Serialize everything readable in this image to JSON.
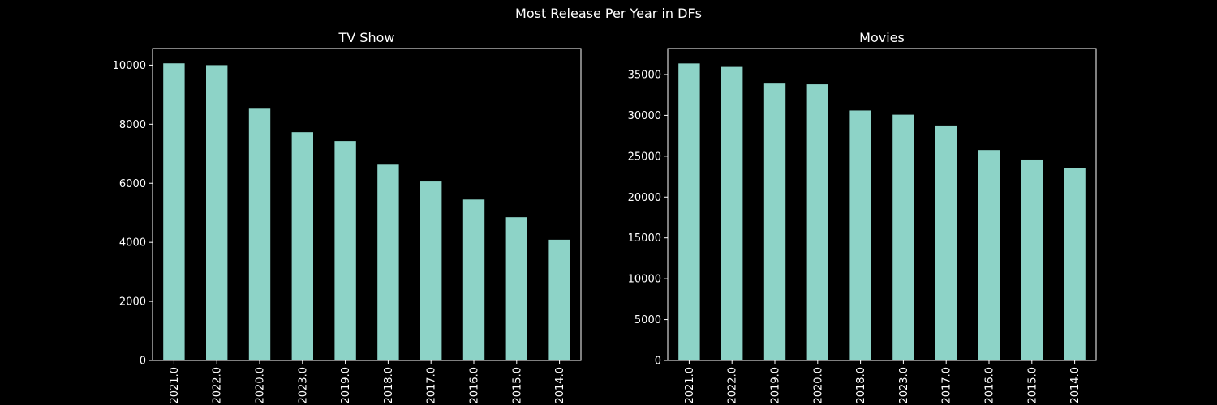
{
  "figure": {
    "title": "Most Release Per Year in DFs"
  },
  "colors": {
    "bar": "#8dd3c7",
    "background": "#000000",
    "axes": "#ffffff",
    "text": "#ffffff"
  },
  "chart_data": [
    {
      "type": "bar",
      "title": "TV Show",
      "xlabel": "",
      "ylabel": "",
      "categories": [
        "2021.0",
        "2022.0",
        "2020.0",
        "2023.0",
        "2019.0",
        "2018.0",
        "2017.0",
        "2016.0",
        "2015.0",
        "2014.0"
      ],
      "values": [
        10060,
        10000,
        8550,
        7730,
        7430,
        6630,
        6060,
        5450,
        4850,
        4090
      ],
      "ylim": [
        0,
        10560
      ],
      "yticks": [
        0,
        2000,
        4000,
        6000,
        8000,
        10000
      ],
      "grid": false,
      "legend": "none"
    },
    {
      "type": "bar",
      "title": "Movies",
      "xlabel": "",
      "ylabel": "",
      "categories": [
        "2021.0",
        "2022.0",
        "2019.0",
        "2020.0",
        "2018.0",
        "2023.0",
        "2017.0",
        "2016.0",
        "2015.0",
        "2014.0"
      ],
      "values": [
        36350,
        35930,
        33890,
        33800,
        30590,
        30080,
        28760,
        25760,
        24590,
        23560
      ],
      "ylim": [
        0,
        38170
      ],
      "yticks": [
        0,
        5000,
        10000,
        15000,
        20000,
        25000,
        30000,
        35000
      ],
      "grid": false,
      "legend": "none"
    }
  ]
}
